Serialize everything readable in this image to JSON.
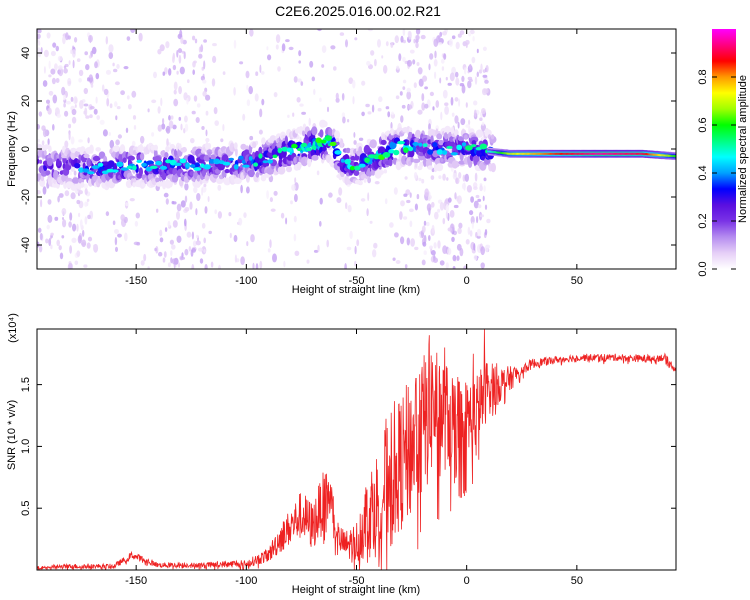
{
  "page": {
    "title": "C2E6.2025.016.00.02.R21"
  },
  "chart_data": [
    {
      "type": "heatmap",
      "xlabel": "Height of straight line (km)",
      "ylabel": "Frequency (Hz)",
      "xlim": [
        -195,
        95
      ],
      "ylim": [
        -50,
        50
      ],
      "x_ticks": [
        -150,
        -100,
        -50,
        0,
        50
      ],
      "y_ticks": [
        -40,
        -20,
        0,
        20,
        40
      ],
      "colorbar": {
        "label": "Normalized spectral amplitude",
        "range": [
          0,
          1
        ],
        "ticks": [
          0.0,
          0.2,
          0.4,
          0.6,
          0.8
        ],
        "colormap": [
          "#ffffff",
          "#e6cff7",
          "#b58cf0",
          "#7a33e6",
          "#5a0fe0",
          "#0000ff",
          "#00a0ff",
          "#00ffff",
          "#00ff80",
          "#00ff00",
          "#a0ff00",
          "#ffff00",
          "#ff9900",
          "#ff0000",
          "#ff0080",
          "#ff00ff"
        ]
      },
      "ridge": {
        "x": [
          -190,
          -170,
          -150,
          -130,
          -110,
          -95,
          -80,
          -70,
          -62,
          -58,
          -52,
          -45,
          -38,
          -30,
          -20,
          -10,
          0,
          10,
          20,
          40,
          60,
          80,
          95
        ],
        "y": [
          -7,
          -8,
          -7,
          -7,
          -6,
          -5,
          -1,
          2,
          3,
          -3,
          -8,
          -5,
          -2,
          1,
          0,
          0,
          0,
          -1,
          -2,
          -2,
          -2,
          -2,
          -3
        ],
        "amplitude": [
          0.3,
          0.35,
          0.4,
          0.4,
          0.35,
          0.4,
          0.45,
          0.5,
          0.55,
          0.4,
          0.45,
          0.45,
          0.5,
          0.45,
          0.35,
          0.35,
          0.4,
          0.45,
          0.7,
          0.85,
          0.95,
          0.9,
          0.6
        ]
      }
    },
    {
      "type": "line",
      "xlabel": "Height of straight line (km)",
      "ylabel": "SNR (10 * v/v)",
      "y_multiplier": "(x10⁴)",
      "xlim": [
        -195,
        95
      ],
      "ylim": [
        0,
        1.95
      ],
      "x_ticks": [
        -150,
        -100,
        -50,
        0,
        50
      ],
      "y_ticks": [
        0.5,
        1.0,
        1.5
      ],
      "y_tick_labels": [
        "0.5",
        "1.0",
        "1.5"
      ],
      "series": [
        {
          "color": "#ee2222",
          "x": [
            -195,
            -180,
            -160,
            -152,
            -140,
            -120,
            -105,
            -100,
            -90,
            -85,
            -80,
            -75,
            -70,
            -65,
            -62,
            -58,
            -55,
            -50,
            -45,
            -40,
            -35,
            -30,
            -25,
            -20,
            -15,
            -10,
            -5,
            0,
            5,
            10,
            15,
            20,
            25,
            30,
            40,
            50,
            60,
            70,
            80,
            90,
            95
          ],
          "y": [
            0.02,
            0.03,
            0.03,
            0.12,
            0.04,
            0.04,
            0.05,
            0.05,
            0.12,
            0.25,
            0.35,
            0.45,
            0.35,
            0.55,
            0.6,
            0.25,
            0.2,
            0.22,
            0.45,
            0.55,
            0.8,
            0.85,
            1.0,
            1.15,
            1.35,
            1.25,
            1.2,
            1.2,
            1.3,
            1.5,
            1.5,
            1.55,
            1.62,
            1.67,
            1.7,
            1.72,
            1.72,
            1.72,
            1.71,
            1.72,
            1.62
          ],
          "noise": [
            0.01,
            0.02,
            0.02,
            0.03,
            0.02,
            0.02,
            0.03,
            0.03,
            0.06,
            0.12,
            0.15,
            0.2,
            0.2,
            0.25,
            0.2,
            0.12,
            0.12,
            0.18,
            0.35,
            0.45,
            0.55,
            0.55,
            0.6,
            0.6,
            0.55,
            0.45,
            0.4,
            0.35,
            0.3,
            0.25,
            0.15,
            0.1,
            0.05,
            0.04,
            0.03,
            0.03,
            0.03,
            0.03,
            0.03,
            0.03,
            0.03
          ],
          "peaks": [
            [
              -17,
              1.9
            ],
            [
              8,
              1.95
            ],
            [
              -23,
              1.55
            ],
            [
              -10,
              1.8
            ],
            [
              3,
              1.75
            ]
          ]
        }
      ]
    }
  ]
}
